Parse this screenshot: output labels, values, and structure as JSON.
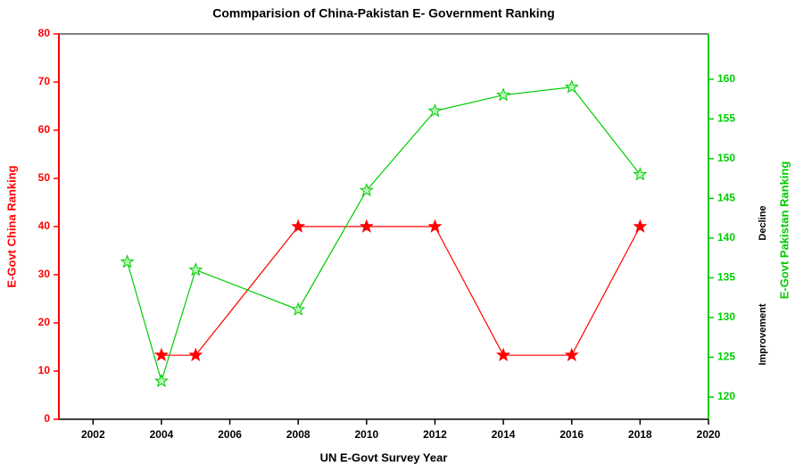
{
  "chart_data": {
    "type": "line",
    "title": "Commparision of China-Pakistan E- Government Ranking",
    "x_label": "UN E-Govt Survey Year",
    "y_label": "E-Govt China Ranking",
    "y2_label": "E-Govt Pakistan Ranking",
    "annotations": [
      "Decline",
      "Improvement"
    ],
    "xlim": [
      2001,
      2020
    ],
    "xticks": [
      2002,
      2004,
      2006,
      2008,
      2010,
      2012,
      2014,
      2016,
      2018,
      2020
    ],
    "ylim": [
      0,
      80
    ],
    "yticks": [
      0,
      10,
      20,
      30,
      40,
      50,
      60,
      70,
      80
    ],
    "y2lim": [
      117.2,
      165.7
    ],
    "y2ticks": [
      120,
      125,
      130,
      135,
      140,
      145,
      150,
      155,
      160
    ],
    "y_color": "#ff0000",
    "y2_color": "#00cc00",
    "series": [
      {
        "name": "China",
        "color": "#ff0000",
        "axis": "y",
        "x": [
          2004,
          2005,
          2008,
          2010,
          2012,
          2014,
          2016,
          2018
        ],
        "values": [
          13.3,
          13.3,
          40,
          40,
          40,
          13.3,
          13.3,
          40
        ]
      },
      {
        "name": "Pakistan",
        "color": "#00cc00",
        "axis": "y2",
        "x": [
          2003,
          2004,
          2005,
          2008,
          2010,
          2012,
          2014,
          2016,
          2018
        ],
        "values": [
          137,
          122,
          136,
          131,
          146,
          156,
          158,
          159,
          148
        ]
      }
    ]
  }
}
